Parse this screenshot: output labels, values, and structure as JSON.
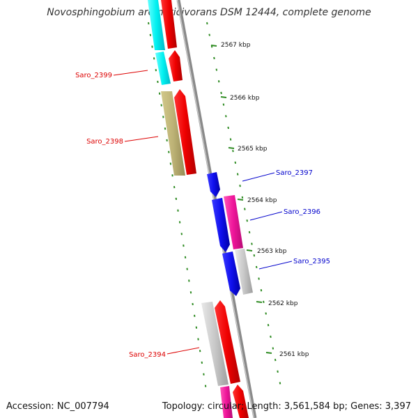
{
  "title": "Novosphingobium aromaticivorans DSM 12444, complete genome",
  "footer": {
    "accession": "Accession: NC_007794",
    "topology": "Topology: circular; Length: 3,561,584 bp; Genes: 3,397"
  },
  "colors": {
    "backbone": "#8a8a8a",
    "tick": "#2e8b22",
    "forward_label": "#dd0000",
    "reverse_label": "#0000cc"
  },
  "kbp_markers": [
    "2567 kbp",
    "2566 kbp",
    "2565 kbp",
    "2564 kbp",
    "2563 kbp",
    "2562 kbp",
    "2561 kbp"
  ],
  "genes": [
    {
      "label": "Saro_2399",
      "strand": "forward",
      "color": "#ee0000"
    },
    {
      "label": "Saro_2398",
      "strand": "forward",
      "color": "#ee0000"
    },
    {
      "label": "Saro_2397",
      "strand": "reverse",
      "color": "#1010ee"
    },
    {
      "label": "Saro_2396",
      "strand": "reverse",
      "color": "#1010ee"
    },
    {
      "label": "Saro_2395",
      "strand": "reverse",
      "color": "#1010ee"
    },
    {
      "label": "Saro_2394",
      "strand": "forward",
      "color": "#ee0000"
    }
  ]
}
